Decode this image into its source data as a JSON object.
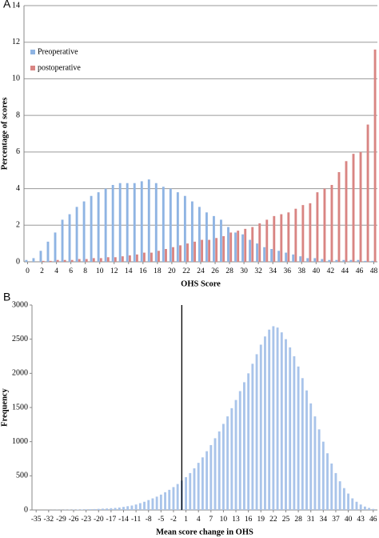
{
  "chart_data": [
    {
      "type": "bar",
      "panel": "A",
      "xlabel": "OHS Score",
      "ylabel": "Percentage of scores",
      "x": [
        0,
        1,
        2,
        3,
        4,
        5,
        6,
        7,
        8,
        9,
        10,
        11,
        12,
        13,
        14,
        15,
        16,
        17,
        18,
        19,
        20,
        21,
        22,
        23,
        24,
        25,
        26,
        27,
        28,
        29,
        30,
        31,
        32,
        33,
        34,
        35,
        36,
        37,
        38,
        39,
        40,
        41,
        42,
        43,
        44,
        45,
        46,
        47,
        48
      ],
      "series": [
        {
          "name": "Preoperative",
          "color": "#8fb4e3",
          "values": [
            0.1,
            0.2,
            0.6,
            1.1,
            1.6,
            2.3,
            2.6,
            3.0,
            3.3,
            3.6,
            3.8,
            4.0,
            4.2,
            4.3,
            4.3,
            4.3,
            4.4,
            4.5,
            4.3,
            4.1,
            4.0,
            3.8,
            3.6,
            3.3,
            3.0,
            2.7,
            2.5,
            2.3,
            1.9,
            1.6,
            1.5,
            1.2,
            1.0,
            0.8,
            0.7,
            0.6,
            0.5,
            0.4,
            0.3,
            0.2,
            0.2,
            0.15,
            0.1,
            0.1,
            0.1,
            0.1,
            0.1,
            0.05,
            0.05
          ]
        },
        {
          "name": "postoperative",
          "color": "#d98583",
          "values": [
            0,
            0,
            0.05,
            0.05,
            0.1,
            0.1,
            0.1,
            0.15,
            0.15,
            0.2,
            0.2,
            0.25,
            0.25,
            0.3,
            0.35,
            0.4,
            0.5,
            0.5,
            0.6,
            0.7,
            0.8,
            0.9,
            1.0,
            1.1,
            1.2,
            1.2,
            1.3,
            1.4,
            1.6,
            1.7,
            1.8,
            1.9,
            2.1,
            2.3,
            2.5,
            2.6,
            2.7,
            2.9,
            3.1,
            3.2,
            3.8,
            4.0,
            4.2,
            4.9,
            5.5,
            5.9,
            6.0,
            7.5,
            11.6
          ]
        }
      ],
      "xlim": [
        -0.5,
        48.5
      ],
      "xticks": [
        0,
        2,
        4,
        6,
        8,
        10,
        12,
        14,
        16,
        18,
        20,
        22,
        24,
        26,
        28,
        30,
        32,
        34,
        36,
        38,
        40,
        42,
        44,
        46,
        48
      ],
      "ylim": [
        0,
        14
      ],
      "yticks": [
        0,
        2,
        4,
        6,
        8,
        10,
        12,
        14
      ],
      "grid": true,
      "legend": "upper left"
    },
    {
      "type": "bar",
      "panel": "B",
      "xlabel": "Mean score change in OHS",
      "ylabel": "Frequency",
      "x": [
        -35,
        -34,
        -33,
        -32,
        -31,
        -30,
        -29,
        -28,
        -27,
        -26,
        -25,
        -24,
        -23,
        -22,
        -21,
        -20,
        -19,
        -18,
        -17,
        -16,
        -15,
        -14,
        -13,
        -12,
        -11,
        -10,
        -9,
        -8,
        -7,
        -6,
        -5,
        -4,
        -3,
        -2,
        -1,
        0,
        1,
        2,
        3,
        4,
        5,
        6,
        7,
        8,
        9,
        10,
        11,
        12,
        13,
        14,
        15,
        16,
        17,
        18,
        19,
        20,
        21,
        22,
        23,
        24,
        25,
        26,
        27,
        28,
        29,
        30,
        31,
        32,
        33,
        34,
        35,
        36,
        37,
        38,
        39,
        40,
        41,
        42,
        43,
        44,
        45,
        46
      ],
      "series": [
        {
          "color": "#a9c4ea",
          "values": [
            0,
            0,
            0,
            1,
            1,
            2,
            2,
            3,
            4,
            5,
            6,
            7,
            9,
            11,
            13,
            16,
            19,
            22,
            26,
            30,
            36,
            45,
            55,
            65,
            80,
            100,
            120,
            145,
            170,
            195,
            225,
            260,
            295,
            335,
            380,
            430,
            480,
            540,
            610,
            690,
            770,
            860,
            950,
            1050,
            1150,
            1260,
            1370,
            1490,
            1610,
            1740,
            1870,
            2000,
            2140,
            2280,
            2420,
            2540,
            2640,
            2690,
            2670,
            2600,
            2500,
            2380,
            2250,
            2100,
            1930,
            1750,
            1560,
            1370,
            1180,
            1000,
            830,
            680,
            540,
            420,
            320,
            240,
            170,
            120,
            80,
            50,
            30,
            15
          ]
        }
      ],
      "vline": 0,
      "xlim": [
        -36,
        47
      ],
      "xticks": [
        -35,
        -32,
        -29,
        -26,
        -23,
        -20,
        -17,
        -14,
        -11,
        -8,
        -5,
        -2,
        1,
        4,
        7,
        10,
        13,
        16,
        19,
        22,
        25,
        28,
        31,
        34,
        37,
        40,
        43,
        46
      ],
      "ylim": [
        0,
        3000
      ],
      "yticks": [
        0,
        500,
        1000,
        1500,
        2000,
        2500,
        3000
      ],
      "grid": false
    }
  ]
}
